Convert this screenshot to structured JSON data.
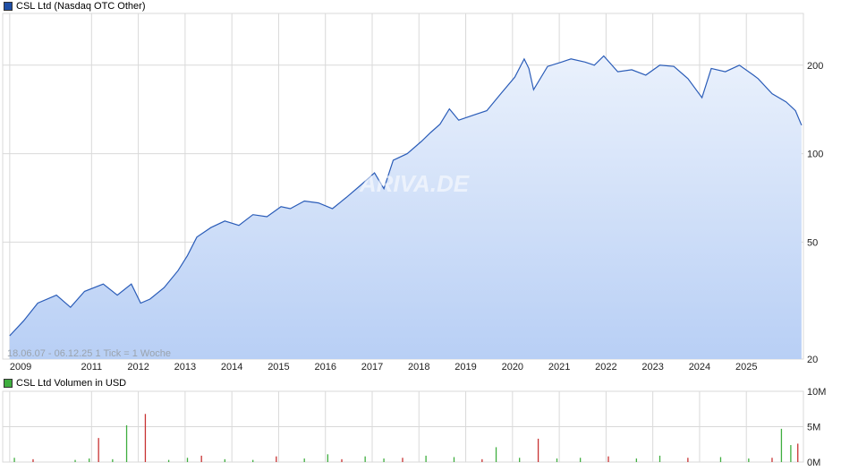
{
  "price_chart": {
    "legend_label": "CSL Ltd (Nasdaq OTC Other)",
    "legend_color": "#1f4fa5",
    "meta_text": "18.06.07 - 06.12.25   1 Tick = 1 Woche",
    "watermark": "ARIVA.DE"
  },
  "volume_chart": {
    "legend_label": "CSL Ltd Volumen in USD",
    "legend_color": "#3fae3f"
  },
  "colors": {
    "line": "#2a5cb8",
    "area_top": "#eaf1fc",
    "area_bottom": "#b8cff5",
    "grid": "#d9d9d9",
    "volume_up": "#3fae3f",
    "volume_down": "#c83232"
  },
  "chart_data": [
    {
      "type": "line",
      "title": "CSL Ltd (Nasdaq OTC Other)",
      "scale": "log",
      "ylim": [
        20,
        300
      ],
      "y_ticks": [
        20,
        50,
        100,
        200
      ],
      "y_tick_labels": [
        "20",
        "50",
        "100",
        "200"
      ],
      "x_ticks": [
        "2009",
        "2011",
        "2012",
        "2013",
        "2014",
        "2015",
        "2016",
        "2017",
        "2018",
        "2019",
        "2020",
        "2021",
        "2022",
        "2023",
        "2024",
        "2025"
      ],
      "series": [
        {
          "name": "CSL Ltd (Nasdaq OTC Other)",
          "x": [
            2009.0,
            2009.3,
            2009.6,
            2010.0,
            2010.3,
            2010.6,
            2011.0,
            2011.3,
            2011.6,
            2011.8,
            2012.0,
            2012.3,
            2012.6,
            2012.8,
            2013.0,
            2013.3,
            2013.6,
            2013.9,
            2014.2,
            2014.5,
            2014.8,
            2015.0,
            2015.3,
            2015.6,
            2015.9,
            2016.2,
            2016.5,
            2016.8,
            2017.0,
            2017.2,
            2017.5,
            2017.8,
            2018.0,
            2018.2,
            2018.4,
            2018.6,
            2018.9,
            2019.2,
            2019.5,
            2019.8,
            2020.0,
            2020.1,
            2020.2,
            2020.5,
            2020.8,
            2021.0,
            2021.3,
            2021.5,
            2021.7,
            2022.0,
            2022.3,
            2022.6,
            2022.9,
            2023.2,
            2023.5,
            2023.8,
            2024.0,
            2024.3,
            2024.6,
            2024.9,
            2025.0,
            2025.3,
            2025.6,
            2025.8,
            2025.93
          ],
          "values": [
            24,
            27,
            31,
            33,
            30,
            34,
            36,
            33,
            36,
            31,
            32,
            35,
            40,
            45,
            52,
            56,
            59,
            57,
            62,
            61,
            66,
            65,
            69,
            68,
            65,
            71,
            78,
            86,
            76,
            95,
            100,
            110,
            118,
            126,
            142,
            130,
            135,
            140,
            160,
            182,
            210,
            195,
            165,
            198,
            205,
            210,
            205,
            200,
            215,
            190,
            193,
            185,
            200,
            198,
            180,
            155,
            195,
            190,
            200,
            185,
            180,
            160,
            150,
            140,
            125
          ]
        }
      ]
    },
    {
      "type": "bar",
      "title": "CSL Ltd Volumen in USD",
      "ylim": [
        0,
        10
      ],
      "y_tick_labels": [
        "0M",
        "5M",
        "10M"
      ],
      "y_ticks": [
        0,
        5,
        10
      ],
      "x_ticks": [
        "2009",
        "2011",
        "2012",
        "2013",
        "2014",
        "2015",
        "2016",
        "2017",
        "2018",
        "2019",
        "2020",
        "2021",
        "2022",
        "2023",
        "2024",
        "2025"
      ],
      "series": [
        {
          "name": "CSL Ltd Volumen in USD",
          "x": [
            2009.1,
            2009.5,
            2010.4,
            2010.7,
            2010.9,
            2011.2,
            2011.5,
            2011.9,
            2012.4,
            2012.8,
            2013.1,
            2013.6,
            2014.2,
            2014.7,
            2015.3,
            2015.8,
            2016.1,
            2016.6,
            2017.0,
            2017.4,
            2017.9,
            2018.5,
            2019.1,
            2019.4,
            2019.9,
            2020.3,
            2020.7,
            2021.2,
            2021.8,
            2022.4,
            2022.9,
            2023.5,
            2024.2,
            2024.8,
            2025.3,
            2025.5,
            2025.7,
            2025.85
          ],
          "values": [
            0.6,
            0.4,
            0.3,
            0.5,
            3.4,
            0.4,
            5.2,
            6.8,
            0.3,
            0.6,
            0.9,
            0.4,
            0.3,
            0.8,
            0.5,
            1.1,
            0.4,
            0.8,
            0.5,
            0.6,
            0.9,
            0.7,
            0.4,
            2.1,
            0.6,
            3.3,
            0.5,
            0.6,
            0.8,
            0.5,
            0.9,
            0.6,
            0.7,
            0.5,
            0.6,
            4.7,
            2.4,
            2.6
          ]
        }
      ]
    }
  ]
}
